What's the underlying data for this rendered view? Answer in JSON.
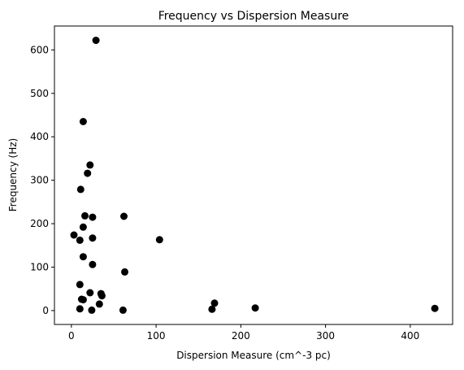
{
  "chart_data": {
    "type": "scatter",
    "title": "Frequency vs Dispersion Measure",
    "xlabel": "Dispersion Measure (cm^-3 pc)",
    "ylabel": "Frequency (Hz)",
    "xlim": [
      -20,
      450
    ],
    "ylim": [
      -32,
      655
    ],
    "xticks": [
      0,
      100,
      200,
      300,
      400
    ],
    "yticks": [
      0,
      100,
      200,
      300,
      400,
      500,
      600
    ],
    "grid": false,
    "legend": "none",
    "marker_color": "#000000",
    "points": [
      {
        "x": 29,
        "y": 622
      },
      {
        "x": 14,
        "y": 435
      },
      {
        "x": 22,
        "y": 335
      },
      {
        "x": 19,
        "y": 316
      },
      {
        "x": 11,
        "y": 279
      },
      {
        "x": 16,
        "y": 218
      },
      {
        "x": 25,
        "y": 215
      },
      {
        "x": 62,
        "y": 217
      },
      {
        "x": 14,
        "y": 192
      },
      {
        "x": 3,
        "y": 174
      },
      {
        "x": 10,
        "y": 162
      },
      {
        "x": 25,
        "y": 167
      },
      {
        "x": 104,
        "y": 163
      },
      {
        "x": 14,
        "y": 124
      },
      {
        "x": 25,
        "y": 106
      },
      {
        "x": 63,
        "y": 89
      },
      {
        "x": 10,
        "y": 60
      },
      {
        "x": 22,
        "y": 41
      },
      {
        "x": 35,
        "y": 39
      },
      {
        "x": 36,
        "y": 34
      },
      {
        "x": 12,
        "y": 26
      },
      {
        "x": 14,
        "y": 25
      },
      {
        "x": 33,
        "y": 15
      },
      {
        "x": 169,
        "y": 17
      },
      {
        "x": 217,
        "y": 6
      },
      {
        "x": 10,
        "y": 4
      },
      {
        "x": 24,
        "y": 1
      },
      {
        "x": 61,
        "y": 1
      },
      {
        "x": 166,
        "y": 3
      },
      {
        "x": 429,
        "y": 5
      }
    ]
  }
}
